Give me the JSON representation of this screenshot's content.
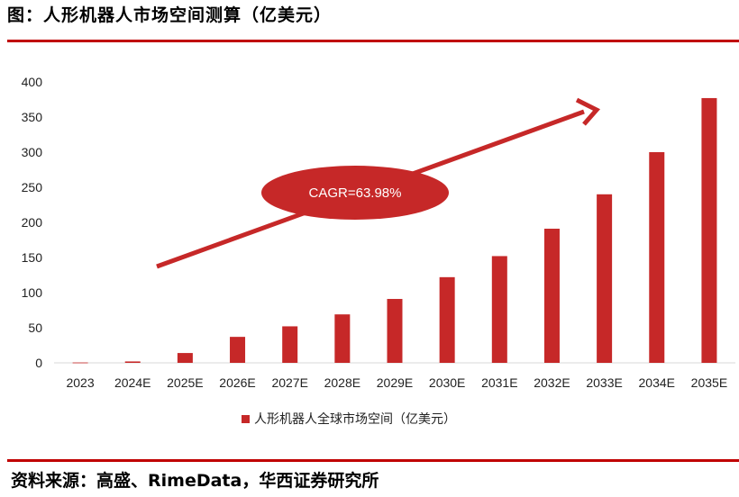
{
  "header": {
    "title": "图：人形机器人市场空间测算（亿美元）"
  },
  "footer": {
    "source": "资料来源：高盛、RimeData，华西证券研究所"
  },
  "annotation": {
    "cagr": "CAGR=63.98%"
  },
  "colors": {
    "bar": "#c62828",
    "rule": "#c00000",
    "ellipse": "#c62828",
    "arrow": "#c62828"
  },
  "chart_data": {
    "type": "bar",
    "title": "",
    "xlabel": "",
    "ylabel": "",
    "categories": [
      "2023",
      "2024E",
      "2025E",
      "2026E",
      "2027E",
      "2028E",
      "2029E",
      "2030E",
      "2031E",
      "2032E",
      "2033E",
      "2034E",
      "2035E"
    ],
    "series": [
      {
        "name": "人形机器人全球市场空间（亿美元）",
        "values": [
          0.5,
          2,
          14,
          37,
          52,
          69,
          91,
          122,
          152,
          191,
          240,
          300,
          377
        ]
      }
    ],
    "ylim": [
      0,
      400
    ],
    "yticks": [
      0,
      50,
      100,
      150,
      200,
      250,
      300,
      350,
      400
    ],
    "grid": false,
    "legend": "bottom"
  }
}
